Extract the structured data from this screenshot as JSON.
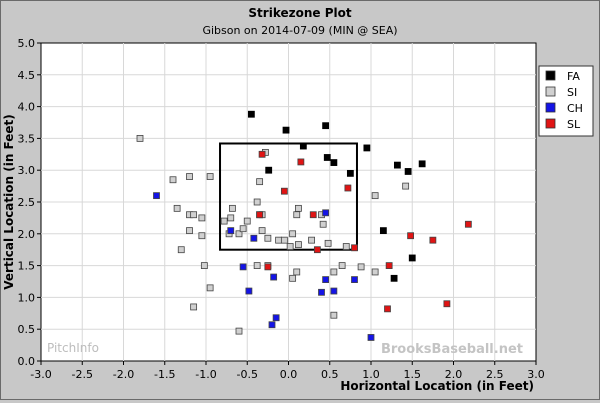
{
  "chart_data": {
    "type": "scatter",
    "title": "Strikezone Plot",
    "subtitle": "Gibson on 2014-07-09 (MIN @ SEA)",
    "xlabel": "Horizontal Location (in Feet)",
    "ylabel": "Vertical Location (in Feet)",
    "xlim": [
      -3.0,
      3.0
    ],
    "ylim": [
      0.0,
      5.0
    ],
    "xticks": [
      "-3.0",
      "-2.5",
      "-2.0",
      "-1.5",
      "-1.0",
      "-0.5",
      "0.0",
      "0.5",
      "1.0",
      "1.5",
      "2.0",
      "2.5",
      "3.0"
    ],
    "yticks": [
      "0.0",
      "0.5",
      "1.0",
      "1.5",
      "2.0",
      "2.5",
      "3.0",
      "3.5",
      "4.0",
      "4.5",
      "5.0"
    ],
    "grid": true,
    "legend": "right",
    "strike_zone": {
      "x": [
        -0.83,
        0.83
      ],
      "y": [
        1.75,
        3.42
      ]
    },
    "watermark_left": "PitchInfo",
    "watermark_right": "BrooksBaseball.net",
    "series": [
      {
        "name": "FA",
        "color": "#000000",
        "points": [
          [
            -0.45,
            3.88
          ],
          [
            -0.03,
            3.63
          ],
          [
            0.45,
            3.7
          ],
          [
            0.47,
            3.2
          ],
          [
            0.55,
            3.12
          ],
          [
            0.18,
            3.38
          ],
          [
            -0.24,
            3.0
          ],
          [
            0.75,
            2.95
          ],
          [
            0.95,
            3.35
          ],
          [
            1.32,
            3.08
          ],
          [
            1.45,
            2.98
          ],
          [
            1.62,
            3.1
          ],
          [
            1.15,
            2.05
          ],
          [
            1.5,
            1.62
          ],
          [
            1.28,
            1.3
          ]
        ]
      },
      {
        "name": "SI",
        "color": "#d0d0d0",
        "points": [
          [
            -1.8,
            3.5
          ],
          [
            -1.4,
            2.85
          ],
          [
            -1.2,
            2.9
          ],
          [
            -0.95,
            2.9
          ],
          [
            -1.35,
            2.4
          ],
          [
            -1.2,
            2.3
          ],
          [
            -1.15,
            2.3
          ],
          [
            -1.05,
            2.25
          ],
          [
            -0.78,
            2.2
          ],
          [
            -0.7,
            2.25
          ],
          [
            -0.68,
            2.4
          ],
          [
            -0.5,
            2.2
          ],
          [
            -0.38,
            2.5
          ],
          [
            -0.32,
            2.3
          ],
          [
            -0.35,
            2.82
          ],
          [
            -0.28,
            3.28
          ],
          [
            0.05,
            2.0
          ],
          [
            0.1,
            2.3
          ],
          [
            0.12,
            2.4
          ],
          [
            0.4,
            2.3
          ],
          [
            0.42,
            2.15
          ],
          [
            -1.3,
            1.75
          ],
          [
            -1.2,
            2.05
          ],
          [
            -1.05,
            1.97
          ],
          [
            -0.72,
            2.0
          ],
          [
            -0.6,
            2.0
          ],
          [
            -0.55,
            2.08
          ],
          [
            -0.32,
            2.05
          ],
          [
            -0.25,
            1.93
          ],
          [
            -0.12,
            1.9
          ],
          [
            -0.05,
            1.9
          ],
          [
            0.02,
            1.8
          ],
          [
            0.12,
            1.83
          ],
          [
            0.28,
            1.9
          ],
          [
            0.48,
            1.85
          ],
          [
            0.7,
            1.8
          ],
          [
            -1.02,
            1.5
          ],
          [
            -0.95,
            1.15
          ],
          [
            -1.15,
            0.85
          ],
          [
            -0.38,
            1.5
          ],
          [
            -0.25,
            1.5
          ],
          [
            0.05,
            1.3
          ],
          [
            0.1,
            1.4
          ],
          [
            0.55,
            1.4
          ],
          [
            0.65,
            1.5
          ],
          [
            0.88,
            1.48
          ],
          [
            1.05,
            2.6
          ],
          [
            1.42,
            2.75
          ],
          [
            1.05,
            1.4
          ],
          [
            0.55,
            0.72
          ],
          [
            -0.6,
            0.47
          ]
        ]
      },
      {
        "name": "CH",
        "color": "#1414e6",
        "points": [
          [
            -1.6,
            2.6
          ],
          [
            -0.7,
            2.05
          ],
          [
            -0.42,
            1.93
          ],
          [
            -0.35,
            2.3
          ],
          [
            0.45,
            2.33
          ],
          [
            -0.55,
            1.48
          ],
          [
            -0.48,
            1.1
          ],
          [
            -0.18,
            1.32
          ],
          [
            0.4,
            1.08
          ],
          [
            0.45,
            1.28
          ],
          [
            0.55,
            1.1
          ],
          [
            0.8,
            1.28
          ],
          [
            -0.2,
            0.57
          ],
          [
            -0.15,
            0.68
          ],
          [
            1.0,
            0.37
          ]
        ]
      },
      {
        "name": "SL",
        "color": "#e01414",
        "points": [
          [
            -0.32,
            3.25
          ],
          [
            0.15,
            3.13
          ],
          [
            -0.05,
            2.67
          ],
          [
            0.72,
            2.72
          ],
          [
            0.3,
            2.3
          ],
          [
            0.8,
            1.78
          ],
          [
            -0.35,
            2.3
          ],
          [
            0.35,
            1.75
          ],
          [
            -0.25,
            1.48
          ],
          [
            1.22,
            1.5
          ],
          [
            1.48,
            1.97
          ],
          [
            1.75,
            1.9
          ],
          [
            2.18,
            2.15
          ],
          [
            1.92,
            0.9
          ],
          [
            1.2,
            0.82
          ]
        ]
      }
    ]
  }
}
